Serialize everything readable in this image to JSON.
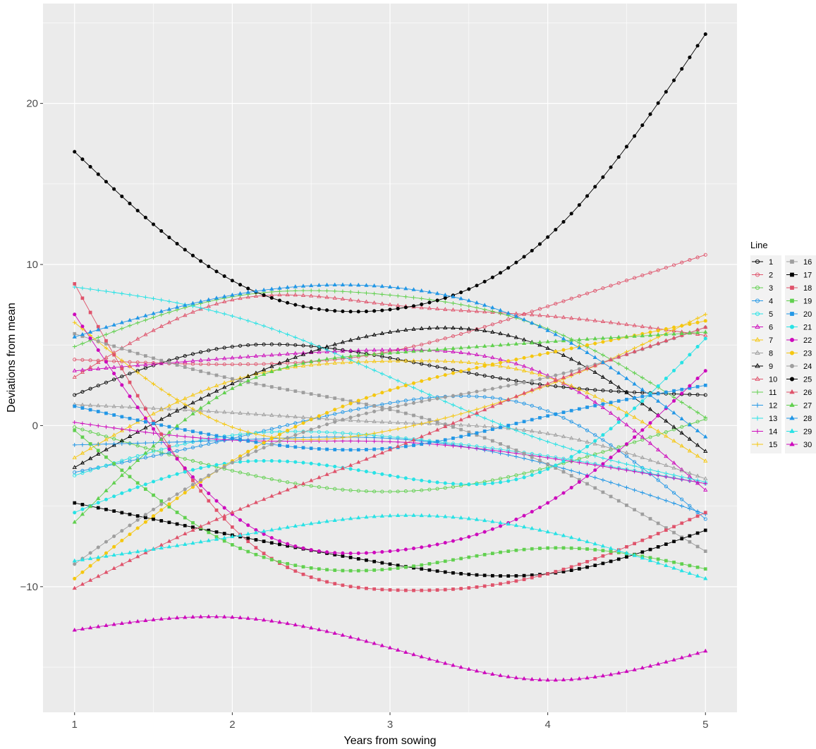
{
  "chart_data": {
    "type": "line",
    "title": "",
    "xlabel": "Years from sowing",
    "ylabel": "Deviations from mean",
    "xlim": [
      0.8,
      5.2
    ],
    "ylim": [
      -17.8,
      26.2
    ],
    "x_ticks": [
      1,
      2,
      3,
      4,
      5
    ],
    "y_ticks": [
      -10,
      0,
      10,
      20
    ],
    "grid": true,
    "legend": {
      "title": "Line",
      "position": "right"
    },
    "series": [
      {
        "name": "1",
        "color": "#000000",
        "shape": "open-circle",
        "x": [
          1,
          2,
          3,
          4,
          5
        ],
        "y": [
          1.9,
          4.9,
          4.2,
          2.5,
          1.9
        ]
      },
      {
        "name": "2",
        "color": "#DF536B",
        "shape": "open-circle",
        "x": [
          1,
          2,
          3,
          4,
          5
        ],
        "y": [
          4.1,
          3.8,
          4.6,
          7.4,
          10.6
        ]
      },
      {
        "name": "3",
        "color": "#61D04F",
        "shape": "open-circle",
        "x": [
          1,
          2,
          3,
          4,
          5
        ],
        "y": [
          -0.1,
          -2.8,
          -4.1,
          -2.6,
          0.4
        ]
      },
      {
        "name": "4",
        "color": "#2297E6",
        "shape": "open-circle",
        "x": [
          1,
          2,
          3,
          4,
          5
        ],
        "y": [
          -2.9,
          -0.8,
          1.4,
          0.9,
          -5.8
        ]
      },
      {
        "name": "5",
        "color": "#28E2E5",
        "shape": "open-circle",
        "x": [
          1,
          2,
          3,
          4,
          5
        ],
        "y": [
          -3.1,
          -0.6,
          -0.7,
          -1.9,
          -3.6
        ]
      },
      {
        "name": "6",
        "color": "#CD0BBC",
        "shape": "open-triangle",
        "x": [
          1,
          2,
          3,
          4,
          5
        ],
        "y": [
          3.4,
          4.2,
          4.7,
          3.1,
          -4.0
        ]
      },
      {
        "name": "7",
        "color": "#F5C710",
        "shape": "open-triangle",
        "x": [
          1,
          2,
          3,
          4,
          5
        ],
        "y": [
          -2.0,
          2.8,
          4.0,
          3.0,
          -2.2
        ]
      },
      {
        "name": "8",
        "color": "#9E9E9E",
        "shape": "open-triangle",
        "x": [
          1,
          2,
          3,
          4,
          5
        ],
        "y": [
          1.3,
          0.8,
          0.2,
          -0.5,
          -3.3
        ]
      },
      {
        "name": "9",
        "color": "#000000",
        "shape": "open-triangle",
        "x": [
          1,
          2,
          3,
          4,
          5
        ],
        "y": [
          -2.6,
          2.6,
          5.8,
          4.8,
          -1.6
        ]
      },
      {
        "name": "10",
        "color": "#DF536B",
        "shape": "open-triangle",
        "x": [
          1,
          2,
          3,
          4,
          5
        ],
        "y": [
          3.0,
          7.8,
          7.5,
          6.8,
          5.6
        ]
      },
      {
        "name": "11",
        "color": "#61D04F",
        "shape": "plus",
        "x": [
          1,
          2,
          3,
          4,
          5
        ],
        "y": [
          4.9,
          8.0,
          8.1,
          6.0,
          0.5
        ]
      },
      {
        "name": "12",
        "color": "#2297E6",
        "shape": "plus",
        "x": [
          1,
          2,
          3,
          4,
          5
        ],
        "y": [
          -1.2,
          -0.9,
          -0.8,
          -2.4,
          -5.5
        ]
      },
      {
        "name": "13",
        "color": "#28E2E5",
        "shape": "plus",
        "x": [
          1,
          2,
          3,
          4,
          5
        ],
        "y": [
          8.6,
          6.8,
          3.0,
          -1.0,
          -3.5
        ]
      },
      {
        "name": "14",
        "color": "#CD0BBC",
        "shape": "plus",
        "x": [
          1,
          2,
          3,
          4,
          5
        ],
        "y": [
          0.2,
          -0.9,
          -1.0,
          -2.0,
          -3.6
        ]
      },
      {
        "name": "15",
        "color": "#F5C710",
        "shape": "plus",
        "x": [
          1,
          2,
          3,
          4,
          5
        ],
        "y": [
          6.4,
          -0.1,
          -0.3,
          2.5,
          6.9
        ]
      },
      {
        "name": "16",
        "color": "#9E9E9E",
        "shape": "square",
        "x": [
          1,
          2,
          3,
          4,
          5
        ],
        "y": [
          5.7,
          2.9,
          1.0,
          -2.4,
          -7.8
        ]
      },
      {
        "name": "17",
        "color": "#000000",
        "shape": "square",
        "x": [
          1,
          2,
          3,
          4,
          5
        ],
        "y": [
          -4.8,
          -6.8,
          -8.6,
          -9.2,
          -6.5
        ]
      },
      {
        "name": "18",
        "color": "#DF536B",
        "shape": "square",
        "x": [
          1,
          2,
          3,
          4,
          5
        ],
        "y": [
          8.8,
          -6.3,
          -10.2,
          -9.2,
          -5.4
        ]
      },
      {
        "name": "19",
        "color": "#61D04F",
        "shape": "square",
        "x": [
          1,
          2,
          3,
          4,
          5
        ],
        "y": [
          -0.3,
          -7.4,
          -8.9,
          -7.6,
          -8.9
        ]
      },
      {
        "name": "20",
        "color": "#2297E6",
        "shape": "square",
        "x": [
          1,
          2,
          3,
          4,
          5
        ],
        "y": [
          1.2,
          -0.8,
          -1.4,
          0.6,
          2.5
        ]
      },
      {
        "name": "21",
        "color": "#28E2E5",
        "shape": "circle",
        "x": [
          1,
          2,
          3,
          4,
          5
        ],
        "y": [
          -5.4,
          -2.3,
          -3.1,
          -2.7,
          5.4
        ]
      },
      {
        "name": "22",
        "color": "#CD0BBC",
        "shape": "circle",
        "x": [
          1,
          2,
          3,
          4,
          5
        ],
        "y": [
          6.9,
          -5.5,
          -7.8,
          -4.8,
          3.4
        ]
      },
      {
        "name": "23",
        "color": "#F5C710",
        "shape": "circle",
        "x": [
          1,
          2,
          3,
          4,
          5
        ],
        "y": [
          -9.5,
          -2.2,
          2.2,
          4.5,
          6.5
        ]
      },
      {
        "name": "24",
        "color": "#9E9E9E",
        "shape": "circle",
        "x": [
          1,
          2,
          3,
          4,
          5
        ],
        "y": [
          -8.6,
          -2.3,
          1.1,
          3.0,
          6.1
        ]
      },
      {
        "name": "25",
        "color": "#000000",
        "shape": "circle",
        "x": [
          1,
          2,
          3,
          4,
          5
        ],
        "y": [
          17.0,
          9.0,
          7.2,
          11.7,
          24.3
        ]
      },
      {
        "name": "26",
        "color": "#DF536B",
        "shape": "triangle",
        "x": [
          1,
          2,
          3,
          4,
          5
        ],
        "y": [
          -10.1,
          -5.4,
          -1.5,
          2.6,
          6.1
        ]
      },
      {
        "name": "27",
        "color": "#61D04F",
        "shape": "triangle",
        "x": [
          1,
          2,
          3,
          4,
          5
        ],
        "y": [
          -6.0,
          2.3,
          4.5,
          5.2,
          5.8
        ]
      },
      {
        "name": "28",
        "color": "#2297E6",
        "shape": "triangle",
        "x": [
          1,
          2,
          3,
          4,
          5
        ],
        "y": [
          5.5,
          8.1,
          8.6,
          5.9,
          -0.7
        ]
      },
      {
        "name": "29",
        "color": "#28E2E5",
        "shape": "triangle",
        "x": [
          1,
          2,
          3,
          4,
          5
        ],
        "y": [
          -8.4,
          -6.9,
          -5.6,
          -6.6,
          -9.5
        ]
      },
      {
        "name": "30",
        "color": "#CD0BBC",
        "shape": "triangle",
        "x": [
          1,
          2,
          3,
          4,
          5
        ],
        "y": [
          -12.7,
          -11.9,
          -13.8,
          -15.8,
          -14.0
        ]
      }
    ]
  }
}
